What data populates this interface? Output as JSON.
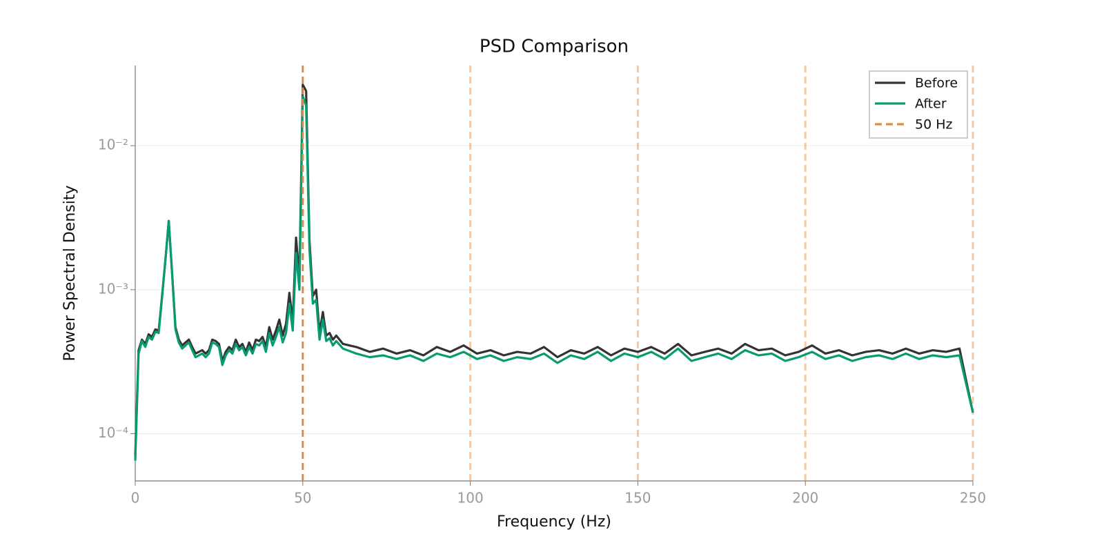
{
  "chart_data": {
    "type": "line",
    "title": "PSD Comparison",
    "x_label": "Frequency (Hz)",
    "y_label": "Power Spectral Density",
    "log_y": true,
    "grid": true,
    "legend": "upper right",
    "x": [
      0,
      1,
      2,
      3,
      4,
      5,
      6,
      7,
      8,
      9,
      10,
      11,
      12,
      13,
      14,
      15,
      16,
      17,
      18,
      19,
      20,
      21,
      22,
      23,
      24,
      25,
      26,
      27,
      28,
      29,
      30,
      31,
      32,
      33,
      34,
      35,
      36,
      37,
      38,
      39,
      40,
      41,
      42,
      43,
      44,
      45,
      46,
      47,
      48,
      49,
      50,
      51,
      52,
      53,
      54,
      55,
      56,
      57,
      58,
      59,
      60,
      62,
      66,
      70,
      74,
      78,
      82,
      86,
      90,
      94,
      98,
      102,
      106,
      110,
      114,
      118,
      122,
      126,
      130,
      134,
      138,
      142,
      146,
      150,
      154,
      158,
      162,
      166,
      170,
      174,
      178,
      182,
      186,
      190,
      194,
      198,
      202,
      206,
      210,
      214,
      218,
      222,
      226,
      230,
      234,
      238,
      242,
      246,
      250
    ],
    "series": [
      {
        "name": "Before",
        "color": "#333333",
        "values": [
          7e-05,
          0.00038,
          0.00045,
          0.00042,
          0.00049,
          0.00047,
          0.00053,
          0.00052,
          0.0009,
          0.0016,
          0.003,
          0.0013,
          0.00055,
          0.00045,
          0.00041,
          0.00043,
          0.00045,
          0.0004,
          0.00036,
          0.00037,
          0.00038,
          0.00036,
          0.00038,
          0.00045,
          0.00044,
          0.00042,
          0.00032,
          0.00037,
          0.0004,
          0.00038,
          0.00045,
          0.0004,
          0.00042,
          0.00037,
          0.00043,
          0.00038,
          0.00045,
          0.00044,
          0.00047,
          0.0004,
          0.00055,
          0.00045,
          0.00052,
          0.00062,
          0.00048,
          0.00058,
          0.00095,
          0.0006,
          0.0023,
          0.0012,
          0.0265,
          0.024,
          0.0022,
          0.0009,
          0.001,
          0.0005,
          0.0007,
          0.00048,
          0.0005,
          0.00045,
          0.00048,
          0.00042,
          0.0004,
          0.00037,
          0.00039,
          0.00036,
          0.00038,
          0.00035,
          0.0004,
          0.00037,
          0.00041,
          0.00036,
          0.00038,
          0.00035,
          0.00037,
          0.00036,
          0.0004,
          0.00034,
          0.00038,
          0.00036,
          0.0004,
          0.00035,
          0.00039,
          0.00037,
          0.0004,
          0.00036,
          0.00042,
          0.00035,
          0.00037,
          0.00039,
          0.00036,
          0.00042,
          0.00038,
          0.00039,
          0.00035,
          0.00037,
          0.00041,
          0.00036,
          0.00038,
          0.00035,
          0.00037,
          0.00038,
          0.00036,
          0.00039,
          0.00036,
          0.00038,
          0.00037,
          0.00039,
          0.00014
        ]
      },
      {
        "name": "After",
        "color": "#079b72",
        "values": [
          6.5e-05,
          0.00036,
          0.00044,
          0.0004,
          0.00047,
          0.00045,
          0.00051,
          0.0005,
          0.00088,
          0.0016,
          0.003,
          0.0013,
          0.00053,
          0.00043,
          0.00039,
          0.00041,
          0.00043,
          0.00038,
          0.00034,
          0.00035,
          0.00036,
          0.00034,
          0.00036,
          0.00043,
          0.00042,
          0.0004,
          0.0003,
          0.00035,
          0.00038,
          0.00036,
          0.00042,
          0.00038,
          0.0004,
          0.00035,
          0.0004,
          0.00036,
          0.00042,
          0.00041,
          0.00044,
          0.00037,
          0.0005,
          0.00041,
          0.00047,
          0.00055,
          0.00043,
          0.0005,
          0.0008,
          0.00052,
          0.0018,
          0.001,
          0.022,
          0.019,
          0.0019,
          0.0008,
          0.00085,
          0.00045,
          0.00062,
          0.00044,
          0.00046,
          0.00041,
          0.00044,
          0.00039,
          0.00036,
          0.00034,
          0.00035,
          0.00033,
          0.00035,
          0.00032,
          0.00036,
          0.00034,
          0.00037,
          0.00033,
          0.00035,
          0.00032,
          0.00034,
          0.00033,
          0.00036,
          0.00031,
          0.00035,
          0.00033,
          0.00037,
          0.00032,
          0.00036,
          0.00034,
          0.00037,
          0.00033,
          0.00039,
          0.00032,
          0.00034,
          0.00036,
          0.00033,
          0.00038,
          0.00035,
          0.00036,
          0.00032,
          0.00034,
          0.00037,
          0.00033,
          0.00035,
          0.00032,
          0.00034,
          0.00035,
          0.00033,
          0.00036,
          0.00033,
          0.00035,
          0.00034,
          0.00035,
          0.00014
        ]
      }
    ],
    "vline": {
      "name": "50 Hz",
      "x": 50,
      "color": "#e08a3c"
    },
    "harmonics": [
      100,
      150,
      200,
      250
    ],
    "xlim": [
      0,
      250
    ],
    "xticks": [
      0,
      50,
      100,
      150,
      200,
      250
    ],
    "ylim": [
      4.7e-05,
      0.036
    ],
    "yticks": [
      {
        "value": 0.0001,
        "label": "10⁻⁴"
      },
      {
        "value": 0.001,
        "label": "10⁻³"
      },
      {
        "value": 0.01,
        "label": "10⁻²"
      }
    ]
  }
}
